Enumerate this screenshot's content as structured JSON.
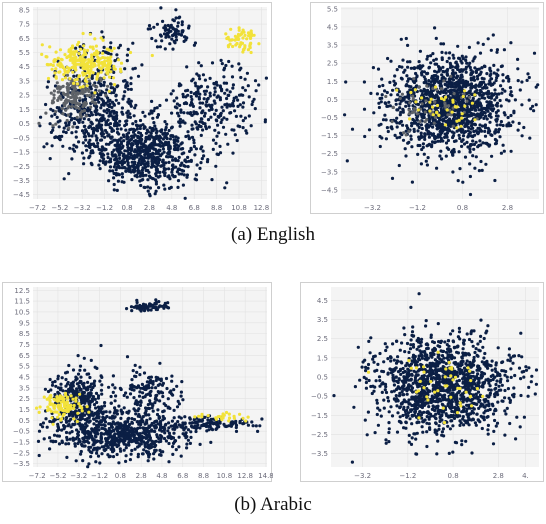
{
  "captions": {
    "a": "(a)  English",
    "b": "(b)  Arabic"
  },
  "colors": {
    "cluster_main": "#0b1f45",
    "cluster_mid": "#5f6368",
    "cluster_high": "#f2e23a",
    "plot_bg": "#f4f4f4",
    "grid": "#e2e2e2"
  },
  "chart_data": [
    {
      "panel": "English-left",
      "type": "scatter",
      "xticks": [
        "−7.2",
        "−5.2",
        "−3.2",
        "−1.2",
        "0.8",
        "2.8",
        "4.8",
        "6.8",
        "8.8",
        "10.8",
        "12.8"
      ],
      "yticks": [
        "8.5",
        "7.5",
        "6.5",
        "5.5",
        "4.5",
        "3.5",
        "2.5",
        "1.5",
        "0.5",
        "−0.5",
        "−1.5",
        "−2.5",
        "−3.5",
        "−4.5"
      ],
      "xlim": [
        -7.6,
        13.3
      ],
      "ylim": [
        -4.8,
        8.7
      ],
      "clusters": [
        {
          "color": "cluster_main",
          "cx": 2.5,
          "cy": -1.5,
          "sx": 2.4,
          "sy": 1.2,
          "n": 700
        },
        {
          "color": "cluster_main",
          "cx": -2.2,
          "cy": 0.8,
          "sx": 2.0,
          "sy": 1.4,
          "n": 350
        },
        {
          "color": "cluster_main",
          "cx": 8.5,
          "cy": 2.0,
          "sx": 2.2,
          "sy": 1.3,
          "n": 250
        },
        {
          "color": "cluster_main",
          "cx": 4.8,
          "cy": 7.0,
          "sx": 0.9,
          "sy": 0.5,
          "n": 80
        },
        {
          "color": "cluster_main",
          "cx": -1.5,
          "cy": 4.0,
          "sx": 1.8,
          "sy": 1.2,
          "n": 120
        },
        {
          "color": "cluster_mid",
          "cx": -3.8,
          "cy": 2.4,
          "sx": 1.1,
          "sy": 0.8,
          "n": 160
        },
        {
          "color": "cluster_high",
          "cx": -3.0,
          "cy": 4.8,
          "sx": 1.6,
          "sy": 0.7,
          "n": 260
        },
        {
          "color": "cluster_high",
          "cx": 11.0,
          "cy": 6.3,
          "sx": 0.9,
          "sy": 0.4,
          "n": 60
        }
      ]
    },
    {
      "panel": "English-right",
      "type": "scatter",
      "xticks": [
        "−3.2",
        "−1.2",
        "0.8",
        "2.8"
      ],
      "yticks": [
        "5.5",
        "4.5",
        "3.5",
        "2.5",
        "1.5",
        "0.5",
        "−0.5",
        "−1.5",
        "−2.5",
        "−3.5",
        "−4.5"
      ],
      "xlim": [
        -4.6,
        4.2
      ],
      "ylim": [
        -5.0,
        5.6
      ],
      "clusters": [
        {
          "color": "cluster_main",
          "cx": 0.2,
          "cy": 0.2,
          "sx": 1.4,
          "sy": 1.35,
          "n": 1400
        },
        {
          "color": "cluster_mid",
          "cx": -0.6,
          "cy": 0.0,
          "sx": 0.9,
          "sy": 0.7,
          "n": 60
        },
        {
          "color": "cluster_high",
          "cx": 0.2,
          "cy": 0.1,
          "sx": 0.9,
          "sy": 0.6,
          "n": 40
        }
      ]
    },
    {
      "panel": "Arabic-left",
      "type": "scatter",
      "xticks": [
        "−7.2",
        "−5.2",
        "−3.2",
        "−1.2",
        "0.8",
        "2.8",
        "4.8",
        "6.8",
        "8.8",
        "10.8",
        "12.8",
        "14.8"
      ],
      "yticks": [
        "12.5",
        "11.5",
        "10.5",
        "9.5",
        "8.5",
        "7.5",
        "6.5",
        "5.5",
        "4.5",
        "3.5",
        "2.5",
        "1.5",
        "0.5",
        "−0.5",
        "−1.5",
        "−2.5",
        "−3.5"
      ],
      "xlim": [
        -7.6,
        14.9
      ],
      "ylim": [
        -3.8,
        12.8
      ],
      "clusters": [
        {
          "color": "cluster_main",
          "cx": 0.5,
          "cy": -0.8,
          "sx": 3.2,
          "sy": 1.1,
          "n": 700
        },
        {
          "color": "cluster_main",
          "cx": -3.0,
          "cy": 2.5,
          "sx": 1.4,
          "sy": 1.5,
          "n": 300
        },
        {
          "color": "cluster_main",
          "cx": 3.5,
          "cy": 3.2,
          "sx": 1.5,
          "sy": 1.0,
          "n": 140
        },
        {
          "color": "cluster_main",
          "cx": 3.5,
          "cy": 11.0,
          "sx": 0.9,
          "sy": 0.25,
          "n": 70
        },
        {
          "color": "cluster_main",
          "cx": 9.0,
          "cy": 0.2,
          "sx": 2.8,
          "sy": 0.35,
          "n": 140
        },
        {
          "color": "cluster_high",
          "cx": -4.8,
          "cy": 1.8,
          "sx": 0.9,
          "sy": 0.6,
          "n": 110
        },
        {
          "color": "cluster_high",
          "cx": 10.5,
          "cy": 0.8,
          "sx": 1.2,
          "sy": 0.2,
          "n": 25
        }
      ]
    },
    {
      "panel": "Arabic-right",
      "type": "scatter",
      "xticks": [
        "−3.2",
        "−1.2",
        "0.8",
        "2.8",
        "4."
      ],
      "yticks": [
        "4.5",
        "3.5",
        "2.5",
        "1.5",
        "0.5",
        "−0.5",
        "−1.5",
        "−2.5",
        "−3.5"
      ],
      "xlim": [
        -4.6,
        4.6
      ],
      "ylim": [
        -4.2,
        5.2
      ],
      "clusters": [
        {
          "color": "cluster_main",
          "cx": 0.3,
          "cy": 0.0,
          "sx": 1.5,
          "sy": 1.3,
          "n": 1400
        },
        {
          "color": "cluster_high",
          "cx": 0.3,
          "cy": 0.2,
          "sx": 0.9,
          "sy": 0.8,
          "n": 45
        }
      ]
    }
  ]
}
